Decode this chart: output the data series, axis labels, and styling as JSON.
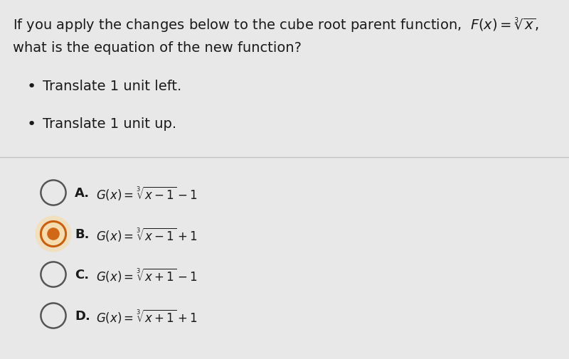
{
  "bg_color": "#e8e8e8",
  "text_color": "#1a1a1a",
  "question_line1": "If you apply the changes below to the cube root parent function,",
  "question_formula": " $F(x) = \\sqrt[3]{x}$,",
  "question_line2": "what is the equation of the new function?",
  "bullets": [
    "Translate 1 unit left.",
    "Translate 1 unit up."
  ],
  "options": [
    {
      "label": "A.",
      "formula": "$G(x) = \\sqrt[3]{x-1} - 1$",
      "selected": false
    },
    {
      "label": "B.",
      "formula": "$G(x) = \\sqrt[3]{x-1} + 1$",
      "selected": true
    },
    {
      "label": "C.",
      "formula": "$G(x) = \\sqrt[3]{x+1} - 1$",
      "selected": false
    },
    {
      "label": "D.",
      "formula": "$G(x) = \\sqrt[3]{x+1} + 1$",
      "selected": false
    }
  ],
  "circle_unselected_edge": "#555555",
  "circle_selected_outer_edge": "#c86010",
  "circle_selected_fill": "#d06818",
  "circle_selected_bg": "#f5ddb0",
  "divider_color": "#c0c0c0",
  "font_size_q": 14,
  "font_size_bullet": 14,
  "font_size_option_label": 13,
  "font_size_option_formula": 12
}
